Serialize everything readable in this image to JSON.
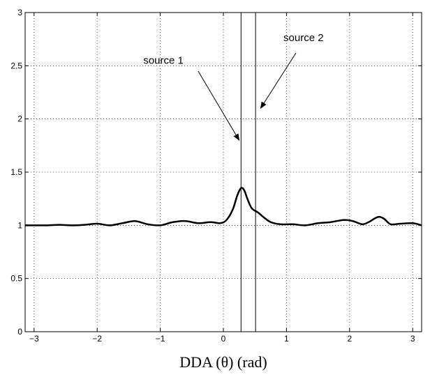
{
  "chart_data": {
    "type": "line",
    "title": "",
    "xlabel": "DDA (θ) (rad)",
    "ylabel": "",
    "xlim": [
      -3.1416,
      3.1416
    ],
    "ylim": [
      0,
      3
    ],
    "grid": true,
    "x_ticks": [
      -3,
      -2,
      -1,
      0,
      1,
      2,
      3
    ],
    "x_tick_labels": [
      "−3",
      "−2",
      "−1",
      "0",
      "1",
      "2",
      "3"
    ],
    "y_ticks": [
      0,
      0.5,
      1,
      1.5,
      2,
      2.5,
      3
    ],
    "y_tick_labels": [
      "0",
      "0.5",
      "1",
      "1.5",
      "2",
      "2.5",
      "3"
    ],
    "series": [
      {
        "color": "#000000",
        "x": [
          -3.1416,
          -3.0,
          -2.8,
          -2.6,
          -2.4,
          -2.2,
          -2.0,
          -1.8,
          -1.6,
          -1.4,
          -1.2,
          -1.0,
          -0.8,
          -0.6,
          -0.4,
          -0.2,
          -0.05,
          0.05,
          0.15,
          0.22,
          0.28,
          0.33,
          0.38,
          0.45,
          0.55,
          0.65,
          0.75,
          0.9,
          1.1,
          1.3,
          1.5,
          1.7,
          1.9,
          2.05,
          2.2,
          2.3,
          2.4,
          2.47,
          2.55,
          2.65,
          2.8,
          3.0,
          3.1416
        ],
        "y": [
          1.0,
          1.0,
          1.0,
          1.005,
          1.0,
          1.005,
          1.015,
          1.0,
          1.02,
          1.04,
          1.01,
          1.0,
          1.03,
          1.04,
          1.02,
          1.03,
          1.02,
          1.05,
          1.15,
          1.28,
          1.35,
          1.33,
          1.25,
          1.16,
          1.12,
          1.07,
          1.03,
          1.01,
          1.01,
          1.0,
          1.02,
          1.03,
          1.05,
          1.04,
          1.01,
          1.03,
          1.065,
          1.08,
          1.06,
          1.01,
          1.015,
          1.02,
          1.0
        ]
      }
    ],
    "vertical_lines": [
      {
        "x": 0.28
      },
      {
        "x": 0.51
      }
    ],
    "annotations": [
      {
        "text": "source 1",
        "text_x": -0.95,
        "text_y": 2.52,
        "arrow_from": [
          -0.4,
          2.45
        ],
        "arrow_to": [
          0.25,
          1.8
        ]
      },
      {
        "text": "source 2",
        "text_x": 1.27,
        "text_y": 2.73,
        "arrow_from": [
          1.15,
          2.62
        ],
        "arrow_to": [
          0.59,
          2.1
        ]
      }
    ]
  }
}
